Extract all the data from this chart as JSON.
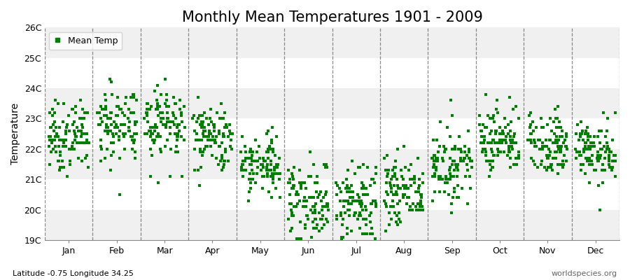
{
  "title": "Monthly Mean Temperatures 1901 - 2009",
  "ylabel": "Temperature",
  "subtitle_left": "Latitude -0.75 Longitude 34.25",
  "subtitle_right": "worldspecies.org",
  "legend_label": "Mean Temp",
  "ylim": [
    19.0,
    26.0
  ],
  "ytick_labels": [
    "19C",
    "20C",
    "21C",
    "22C",
    "23C",
    "24C",
    "25C",
    "26C"
  ],
  "ytick_values": [
    19,
    20,
    21,
    22,
    23,
    24,
    25,
    26
  ],
  "months": [
    "Jan",
    "Feb",
    "Mar",
    "Apr",
    "May",
    "Jun",
    "Jul",
    "Aug",
    "Sep",
    "Oct",
    "Nov",
    "Dec"
  ],
  "marker_color": "#008000",
  "background_color": "#ffffff",
  "band_colors": [
    "#f0f0f0",
    "#ffffff"
  ],
  "title_fontsize": 15,
  "axis_fontsize": 10,
  "tick_fontsize": 9,
  "n_years": 109,
  "monthly_means": [
    22.4,
    22.8,
    22.9,
    22.4,
    21.5,
    20.3,
    20.2,
    20.6,
    21.5,
    22.3,
    22.2,
    21.9
  ],
  "monthly_stds": [
    0.55,
    0.65,
    0.65,
    0.55,
    0.55,
    0.65,
    0.65,
    0.55,
    0.55,
    0.55,
    0.5,
    0.5
  ],
  "seed": 7
}
